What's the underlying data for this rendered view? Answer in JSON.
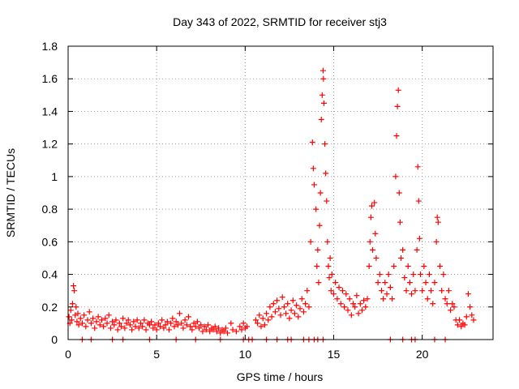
{
  "chart_data": {
    "type": "scatter",
    "title": "Day 343 of 2022, SRMTID for receiver stj3",
    "xlabel": "GPS time / hours",
    "ylabel": "SRMTID / TECUs",
    "xlim": [
      0,
      24
    ],
    "ylim": [
      0,
      1.8
    ],
    "xticks": [
      0,
      5,
      10,
      15,
      20
    ],
    "yticks": [
      0,
      0.2,
      0.4,
      0.6,
      0.8,
      1,
      1.2,
      1.4,
      1.6,
      1.8
    ],
    "xtick_labels": [
      "0",
      "5",
      "10",
      "15",
      "20"
    ],
    "ytick_labels": [
      "0",
      "0.2",
      "0.4",
      "0.6",
      "0.8",
      "1",
      "1.2",
      "1.4",
      "1.6",
      "1.8"
    ],
    "grid": true,
    "legend": "none",
    "marker": "+",
    "series": [
      {
        "name": "SRMTID",
        "color": "#ff0000",
        "points": [
          [
            0.05,
            0.14
          ],
          [
            0.1,
            0.1
          ],
          [
            0.15,
            0.18
          ],
          [
            0.2,
            0.12
          ],
          [
            0.25,
            0.22
          ],
          [
            0.3,
            0.33
          ],
          [
            0.35,
            0.3
          ],
          [
            0.4,
            0.15
          ],
          [
            0.45,
            0.2
          ],
          [
            0.5,
            0.11
          ],
          [
            0.55,
            0.16
          ],
          [
            0.6,
            0.09
          ],
          [
            0.7,
            0.13
          ],
          [
            0.8,
            0.1
          ],
          [
            0.9,
            0.15
          ],
          [
            1.0,
            0.08
          ],
          [
            1.1,
            0.12
          ],
          [
            1.2,
            0.17
          ],
          [
            1.3,
            0.1
          ],
          [
            1.4,
            0.13
          ],
          [
            1.5,
            0.07
          ],
          [
            1.6,
            0.11
          ],
          [
            1.7,
            0.14
          ],
          [
            1.8,
            0.09
          ],
          [
            1.9,
            0.12
          ],
          [
            2.0,
            0.08
          ],
          [
            2.1,
            0.13
          ],
          [
            2.2,
            0.1
          ],
          [
            2.3,
            0.15
          ],
          [
            2.4,
            0.07
          ],
          [
            2.5,
            0.11
          ],
          [
            2.6,
            0.09
          ],
          [
            2.7,
            0.12
          ],
          [
            2.8,
            0.06
          ],
          [
            2.9,
            0.1
          ],
          [
            3.0,
            0.08
          ],
          [
            3.1,
            0.13
          ],
          [
            3.2,
            0.07
          ],
          [
            3.3,
            0.1
          ],
          [
            3.4,
            0.12
          ],
          [
            3.5,
            0.09
          ],
          [
            3.6,
            0.06
          ],
          [
            3.7,
            0.11
          ],
          [
            3.8,
            0.08
          ],
          [
            3.9,
            0.12
          ],
          [
            4.0,
            0.07
          ],
          [
            4.1,
            0.1
          ],
          [
            4.2,
            0.08
          ],
          [
            4.3,
            0.12
          ],
          [
            4.4,
            0.06
          ],
          [
            4.5,
            0.1
          ],
          [
            4.6,
            0.09
          ],
          [
            4.7,
            0.11
          ],
          [
            4.8,
            0.07
          ],
          [
            4.9,
            0.09
          ],
          [
            5.0,
            0.06
          ],
          [
            5.1,
            0.1
          ],
          [
            5.2,
            0.08
          ],
          [
            5.3,
            0.12
          ],
          [
            5.4,
            0.07
          ],
          [
            5.5,
            0.09
          ],
          [
            5.6,
            0.11
          ],
          [
            5.7,
            0.06
          ],
          [
            5.8,
            0.1
          ],
          [
            5.9,
            0.13
          ],
          [
            6.0,
            0.08
          ],
          [
            6.1,
            0.11
          ],
          [
            6.2,
            0.09
          ],
          [
            6.3,
            0.16
          ],
          [
            6.4,
            0.1
          ],
          [
            6.5,
            0.07
          ],
          [
            6.6,
            0.12
          ],
          [
            6.7,
            0.09
          ],
          [
            6.8,
            0.14
          ],
          [
            6.9,
            0.08
          ],
          [
            7.0,
            0.06
          ],
          [
            7.1,
            0.1
          ],
          [
            7.2,
            0.08
          ],
          [
            7.3,
            0.11
          ],
          [
            7.4,
            0.07
          ],
          [
            7.5,
            0.09
          ],
          [
            7.6,
            0.05
          ],
          [
            7.7,
            0.08
          ],
          [
            7.8,
            0.06
          ],
          [
            7.9,
            0.09
          ],
          [
            8.0,
            0.05
          ],
          [
            8.1,
            0.07
          ],
          [
            8.2,
            0.06
          ],
          [
            8.3,
            0.08
          ],
          [
            8.4,
            0.05
          ],
          [
            8.5,
            0.07
          ],
          [
            8.6,
            0.04
          ],
          [
            8.7,
            0.06
          ],
          [
            8.8,
            0.05
          ],
          [
            8.9,
            0.07
          ],
          [
            9.0,
            0.04
          ],
          [
            9.2,
            0.1
          ],
          [
            9.3,
            0.06
          ],
          [
            9.5,
            0.05
          ],
          [
            9.7,
            0.08
          ],
          [
            9.8,
            0.06
          ],
          [
            9.9,
            0.1
          ],
          [
            10.0,
            0.07
          ],
          [
            10.1,
            0.08
          ],
          [
            10.6,
            0.12
          ],
          [
            10.7,
            0.1
          ],
          [
            10.8,
            0.15
          ],
          [
            10.9,
            0.08
          ],
          [
            11.0,
            0.13
          ],
          [
            11.1,
            0.09
          ],
          [
            11.2,
            0.16
          ],
          [
            11.3,
            0.12
          ],
          [
            11.4,
            0.2
          ],
          [
            11.5,
            0.14
          ],
          [
            11.6,
            0.22
          ],
          [
            11.7,
            0.17
          ],
          [
            11.8,
            0.24
          ],
          [
            11.9,
            0.19
          ],
          [
            12.0,
            0.15
          ],
          [
            12.1,
            0.26
          ],
          [
            12.2,
            0.2
          ],
          [
            12.3,
            0.16
          ],
          [
            12.4,
            0.22
          ],
          [
            12.5,
            0.13
          ],
          [
            12.6,
            0.18
          ],
          [
            12.7,
            0.24
          ],
          [
            12.8,
            0.16
          ],
          [
            12.9,
            0.21
          ],
          [
            13.0,
            0.14
          ],
          [
            13.1,
            0.19
          ],
          [
            13.2,
            0.25
          ],
          [
            13.3,
            0.17
          ],
          [
            13.4,
            0.22
          ],
          [
            13.5,
            0.3
          ],
          [
            13.6,
            0.2
          ],
          [
            13.7,
            0.6
          ],
          [
            13.8,
            1.21
          ],
          [
            13.85,
            1.05
          ],
          [
            13.9,
            0.95
          ],
          [
            14.0,
            0.8
          ],
          [
            14.05,
            0.45
          ],
          [
            14.1,
            0.55
          ],
          [
            14.15,
            0.35
          ],
          [
            14.2,
            0.7
          ],
          [
            14.25,
            0.9
          ],
          [
            14.3,
            1.35
          ],
          [
            14.35,
            1.5
          ],
          [
            14.4,
            1.65
          ],
          [
            14.42,
            1.6
          ],
          [
            14.45,
            1.45
          ],
          [
            14.5,
            1.2
          ],
          [
            14.55,
            1.02
          ],
          [
            14.6,
            0.85
          ],
          [
            14.65,
            0.6
          ],
          [
            14.7,
            0.45
          ],
          [
            14.75,
            0.38
          ],
          [
            14.8,
            0.5
          ],
          [
            14.85,
            0.3
          ],
          [
            14.9,
            0.4
          ],
          [
            15.0,
            0.28
          ],
          [
            15.1,
            0.35
          ],
          [
            15.2,
            0.25
          ],
          [
            15.3,
            0.32
          ],
          [
            15.4,
            0.22
          ],
          [
            15.5,
            0.3
          ],
          [
            15.6,
            0.2
          ],
          [
            15.7,
            0.28
          ],
          [
            15.8,
            0.18
          ],
          [
            15.9,
            0.25
          ],
          [
            16.0,
            0.15
          ],
          [
            16.1,
            0.22
          ],
          [
            16.2,
            0.2
          ],
          [
            16.3,
            0.27
          ],
          [
            16.4,
            0.16
          ],
          [
            16.5,
            0.22
          ],
          [
            16.6,
            0.18
          ],
          [
            16.7,
            0.24
          ],
          [
            16.8,
            0.2
          ],
          [
            16.9,
            0.25
          ],
          [
            17.0,
            0.45
          ],
          [
            17.05,
            0.6
          ],
          [
            17.1,
            0.75
          ],
          [
            17.15,
            0.82
          ],
          [
            17.2,
            0.55
          ],
          [
            17.3,
            0.84
          ],
          [
            17.35,
            0.65
          ],
          [
            17.4,
            0.5
          ],
          [
            17.5,
            0.35
          ],
          [
            17.6,
            0.4
          ],
          [
            17.7,
            0.3
          ],
          [
            17.8,
            0.25
          ],
          [
            17.9,
            0.35
          ],
          [
            18.0,
            0.28
          ],
          [
            18.1,
            0.4
          ],
          [
            18.2,
            0.32
          ],
          [
            18.3,
            0.25
          ],
          [
            18.4,
            0.45
          ],
          [
            18.5,
            1.0
          ],
          [
            18.55,
            1.25
          ],
          [
            18.6,
            1.43
          ],
          [
            18.65,
            1.53
          ],
          [
            18.7,
            0.9
          ],
          [
            18.75,
            0.72
          ],
          [
            18.8,
            0.5
          ],
          [
            18.9,
            0.55
          ],
          [
            19.0,
            0.38
          ],
          [
            19.1,
            0.3
          ],
          [
            19.2,
            0.45
          ],
          [
            19.3,
            0.35
          ],
          [
            19.4,
            0.28
          ],
          [
            19.5,
            0.4
          ],
          [
            19.6,
            0.3
          ],
          [
            19.7,
            0.55
          ],
          [
            19.75,
            1.06
          ],
          [
            19.8,
            0.85
          ],
          [
            19.85,
            0.62
          ],
          [
            19.9,
            0.4
          ],
          [
            20.0,
            0.3
          ],
          [
            20.1,
            0.45
          ],
          [
            20.2,
            0.35
          ],
          [
            20.3,
            0.25
          ],
          [
            20.4,
            0.4
          ],
          [
            20.5,
            0.3
          ],
          [
            20.6,
            0.22
          ],
          [
            20.7,
            0.35
          ],
          [
            20.8,
            0.6
          ],
          [
            20.85,
            0.75
          ],
          [
            20.9,
            0.72
          ],
          [
            21.0,
            0.45
          ],
          [
            21.1,
            0.3
          ],
          [
            21.2,
            0.4
          ],
          [
            21.3,
            0.25
          ],
          [
            21.4,
            0.22
          ],
          [
            21.5,
            0.3
          ],
          [
            21.6,
            0.18
          ],
          [
            21.7,
            0.22
          ],
          [
            21.8,
            0.2
          ],
          [
            21.9,
            0.12
          ],
          [
            22.0,
            0.09
          ],
          [
            22.1,
            0.12
          ],
          [
            22.2,
            0.08
          ],
          [
            22.3,
            0.1
          ],
          [
            22.4,
            0.09
          ],
          [
            22.5,
            0.14
          ],
          [
            22.6,
            0.28
          ],
          [
            22.7,
            0.2
          ],
          [
            22.8,
            0.15
          ],
          [
            22.9,
            0.12
          ]
        ],
        "zero_points": [
          0.8,
          1.3,
          2.5,
          3.1,
          4.6,
          6.1,
          7.2,
          8.6,
          9.9,
          10.2,
          10.4,
          11.2,
          11.8,
          12.4,
          12.6,
          13.3,
          13.6,
          13.9,
          14.1,
          14.4,
          18.2,
          18.9,
          19.4,
          19.6,
          20.7,
          21.3
        ]
      }
    ]
  }
}
